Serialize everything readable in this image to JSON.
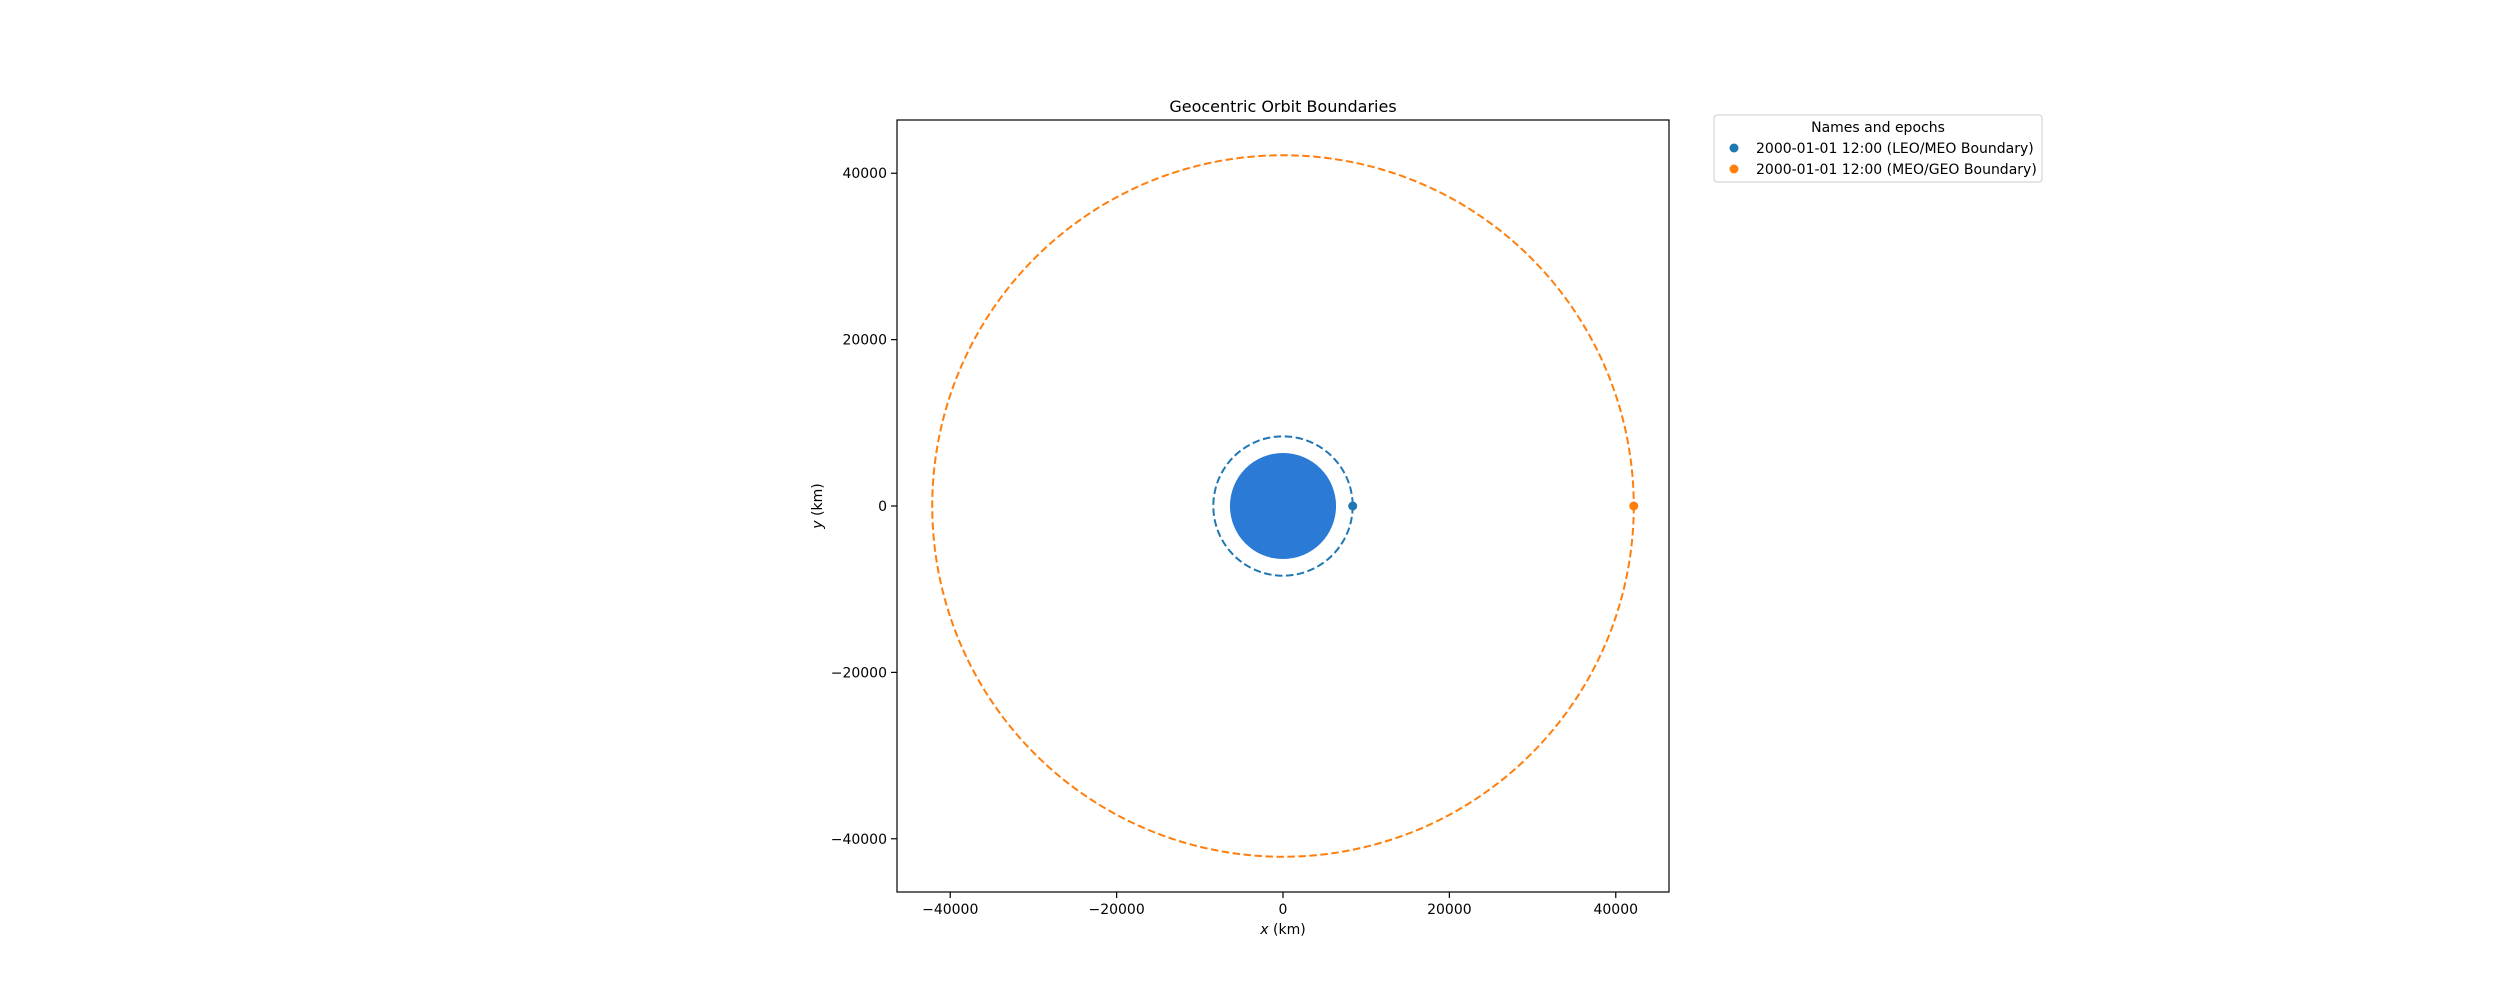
{
  "chart_data": {
    "type": "scatter",
    "title": "Geocentric Orbit Boundaries",
    "xlabel": "$x$ (km)",
    "ylabel": "$y$ (km)",
    "xlim": [
      -46400,
      46400
    ],
    "ylim": [
      -46400,
      46400
    ],
    "xticks": [
      -40000,
      -20000,
      0,
      20000,
      40000
    ],
    "yticks": [
      -40000,
      -20000,
      0,
      20000,
      40000
    ],
    "xtick_labels": [
      "−40000",
      "−20000",
      "0",
      "20000",
      "40000"
    ],
    "ytick_labels": [
      "−40000",
      "−20000",
      "0",
      "20000",
      "40000"
    ],
    "grid": false,
    "aspect": "equal",
    "body": {
      "name": "Earth",
      "radius_km": 6378,
      "color": "#2b7bd6"
    },
    "series": [
      {
        "name": "2000-01-01 12:00 (LEO/MEO Boundary)",
        "color": "#1f77b4",
        "orbit_radius_km": 8378,
        "orbit_style": "dashed",
        "marker": {
          "x": 8378,
          "y": 0
        }
      },
      {
        "name": "2000-01-01 12:00 (MEO/GEO Boundary)",
        "color": "#ff7f0e",
        "orbit_radius_km": 42164,
        "orbit_style": "dashed",
        "marker": {
          "x": 42164,
          "y": 0
        }
      }
    ],
    "legend": {
      "title": "Names and epochs",
      "placement": "outside-upper-right"
    }
  }
}
